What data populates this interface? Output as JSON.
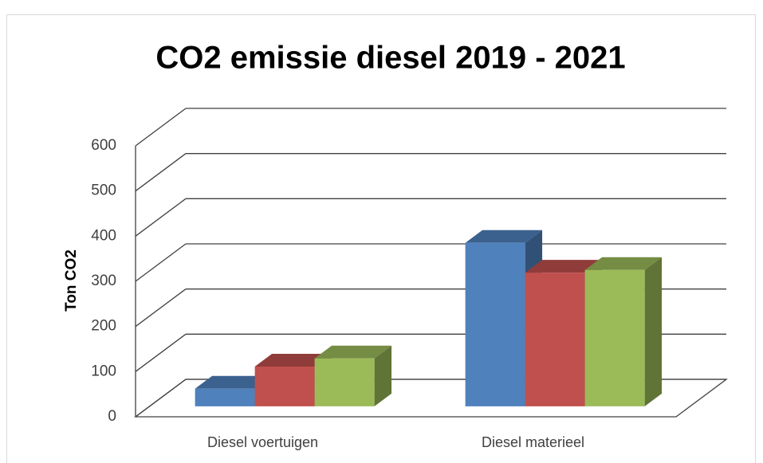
{
  "chart_data": {
    "type": "bar3d",
    "title": "CO2 emissie diesel 2019 - 2021",
    "y_label": "Ton CO2",
    "categories": [
      "Diesel voertuigen",
      "Diesel materieel"
    ],
    "series": [
      {
        "color": "#4f81bd",
        "values": [
          39,
          362
        ]
      },
      {
        "color": "#c0504d",
        "values": [
          88,
          296
        ]
      },
      {
        "color": "#9bbb59",
        "values": [
          106,
          302
        ]
      }
    ],
    "ylim": [
      0,
      600
    ],
    "yticks": [
      0,
      100,
      200,
      300,
      400,
      500,
      600
    ],
    "grid": true
  }
}
